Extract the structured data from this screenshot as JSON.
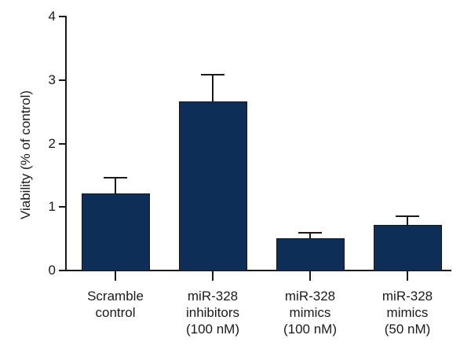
{
  "chart_data": {
    "type": "bar",
    "title": "",
    "xlabel": "",
    "ylabel": "Viability (% of control)",
    "ylim": [
      0,
      4
    ],
    "yticks": [
      0,
      1,
      2,
      3,
      4
    ],
    "grid": false,
    "legend": false,
    "bar_color": "#0d2e56",
    "bar_border_color": "#16161a",
    "axis_color": "#1a1a1a",
    "categories": [
      "Scramble\ncontrol",
      "miR-328\ninhibitors\n(100 nM)",
      "miR-328\nmimics\n(100 nM)",
      "miR-328\nmimics\n(50 nM)"
    ],
    "values": [
      1.2,
      2.65,
      0.5,
      0.7
    ],
    "errors_plus": [
      0.25,
      0.42,
      0.08,
      0.14
    ]
  }
}
